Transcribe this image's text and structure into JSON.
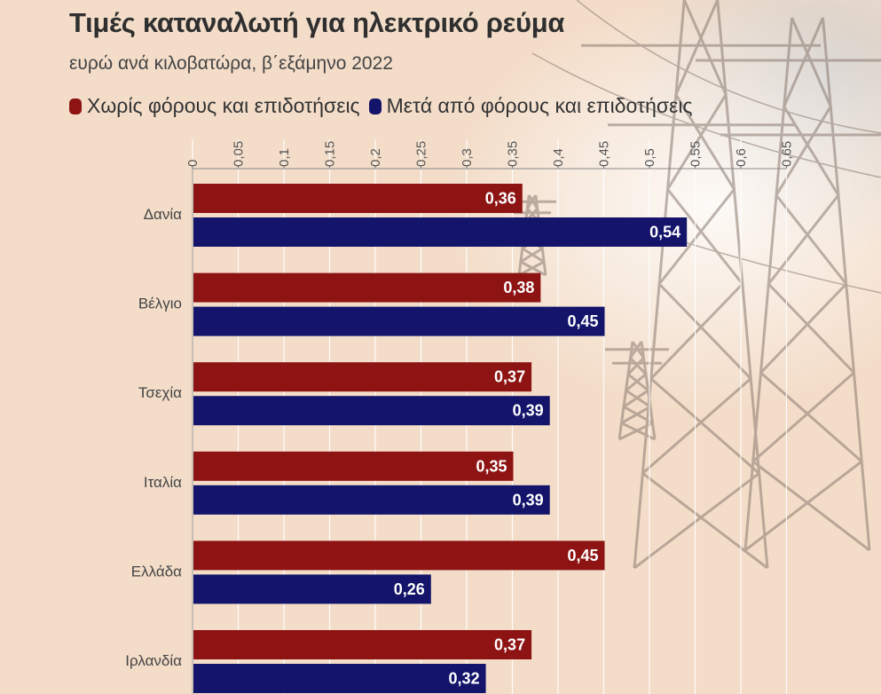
{
  "chart_data": {
    "type": "bar",
    "orientation": "horizontal",
    "title": "Τιμές καταναλωτή για ηλεκτρικό ρεύμα",
    "subtitle": "ευρώ ανά κιλοβατώρα, β΄εξάμηνο 2022",
    "xlabel": "",
    "ylabel": "",
    "xlim": [
      0,
      0.65
    ],
    "ticks": [
      "0",
      "0,05",
      "0,1",
      "0,15",
      "0,2",
      "0,25",
      "0,3",
      "0,35",
      "0,4",
      "0,45",
      "0,5",
      "0,55",
      "0,6",
      "0,65"
    ],
    "grid": true,
    "legend_position": "top",
    "categories": [
      "Δανία",
      "Βέλγιο",
      "Τσεχία",
      "Ιταλία",
      "Ελλάδα",
      "Ιρλανδία"
    ],
    "series": [
      {
        "name": "Χωρίς φόρους και επιδοτήσεις",
        "color": "#8e1414",
        "values": [
          0.36,
          0.38,
          0.37,
          0.35,
          0.45,
          0.37
        ],
        "labels": [
          "0,36",
          "0,38",
          "0,37",
          "0,35",
          "0,45",
          "0,37"
        ]
      },
      {
        "name": "Μετά από φόρους και επιδοτήσεις",
        "color": "#13146a",
        "values": [
          0.54,
          0.45,
          0.39,
          0.39,
          0.26,
          0.32
        ],
        "labels": [
          "0,54",
          "0,45",
          "0,39",
          "0,39",
          "0,26",
          "0,32"
        ]
      }
    ]
  }
}
